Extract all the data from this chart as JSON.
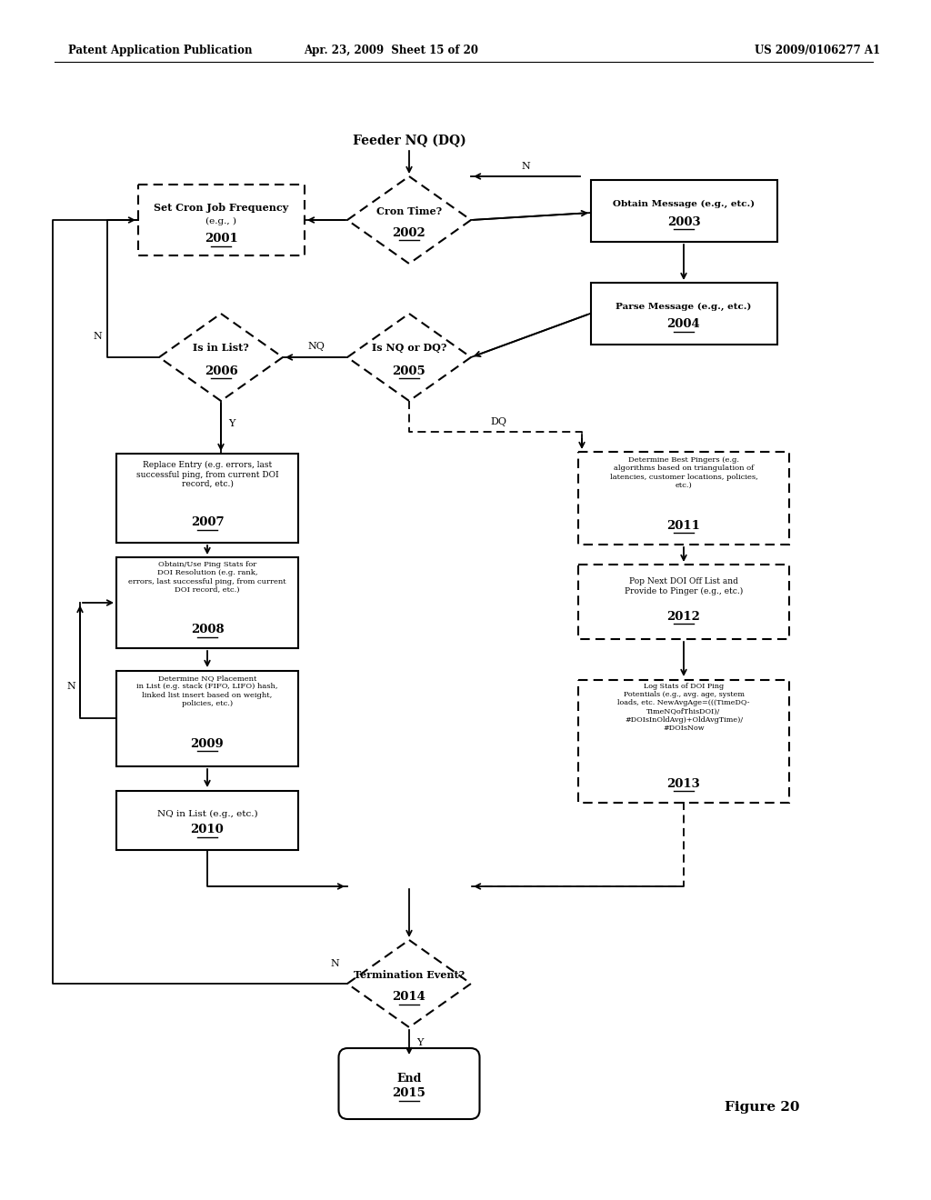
{
  "bg_color": "#ffffff",
  "header_left": "Patent Application Publication",
  "header_mid": "Apr. 23, 2009  Sheet 15 of 20",
  "header_right": "US 2009/0106277 A1",
  "figure_label": "Figure 20",
  "feeder_label": "Feeder NQ (DQ)"
}
